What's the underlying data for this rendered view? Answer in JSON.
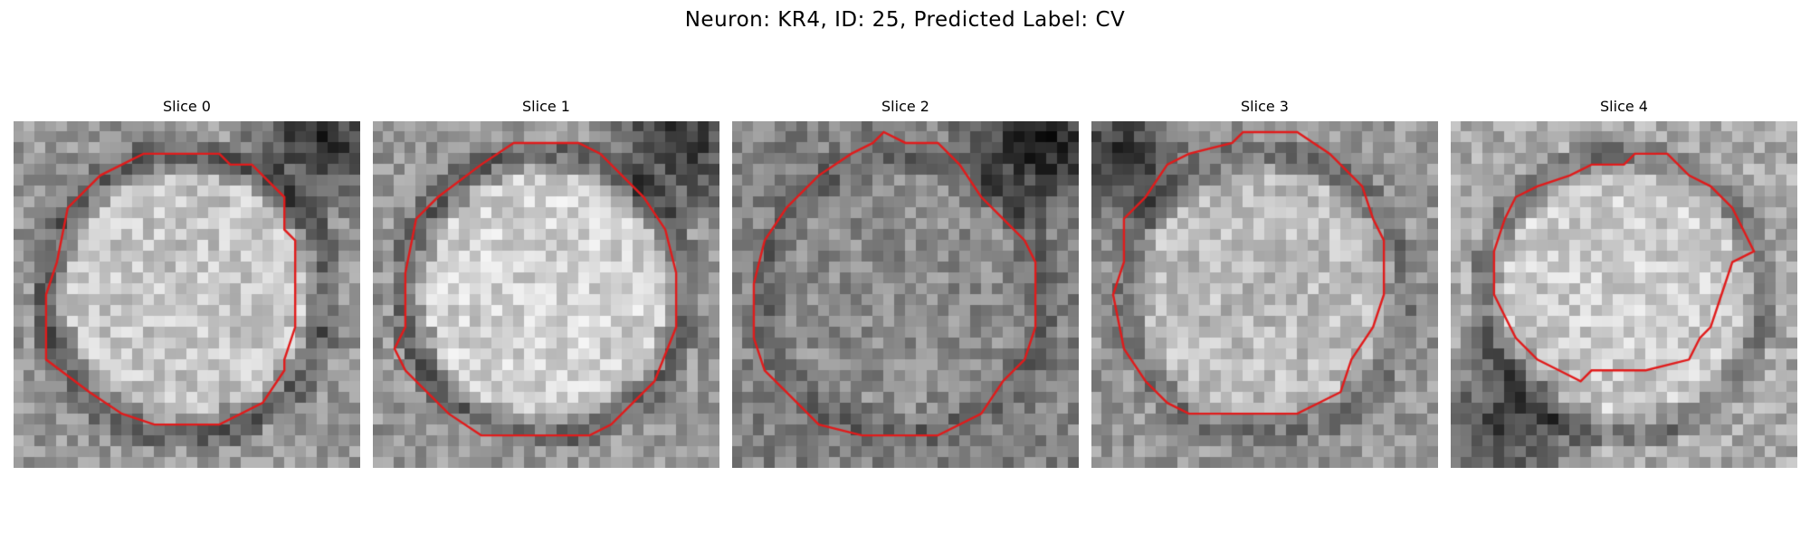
{
  "figure": {
    "title": "Neuron: KR4, ID: 25, Predicted Label: CV"
  },
  "colors": {
    "contour": "#e11b1b",
    "background": "#ffffff"
  },
  "panels": [
    {
      "title": "Slice 0",
      "center_intensity": 198,
      "ring_intensity": 88,
      "outside_intensity": 150,
      "dark_corner": "top-right",
      "contour": [
        [
          12,
          3
        ],
        [
          19,
          3
        ],
        [
          20,
          4
        ],
        [
          22,
          4
        ],
        [
          25,
          7
        ],
        [
          25,
          10
        ],
        [
          26,
          11
        ],
        [
          26,
          13
        ],
        [
          26,
          19
        ],
        [
          25,
          22
        ],
        [
          25,
          23
        ],
        [
          23,
          26
        ],
        [
          19,
          28
        ],
        [
          13,
          28
        ],
        [
          10,
          27
        ],
        [
          7,
          25
        ],
        [
          3,
          22
        ],
        [
          3,
          16
        ],
        [
          4,
          13
        ],
        [
          5,
          8
        ],
        [
          8,
          5
        ],
        [
          10,
          4
        ],
        [
          12,
          3
        ]
      ]
    },
    {
      "title": "Slice 1",
      "center_intensity": 210,
      "ring_intensity": 92,
      "outside_intensity": 150,
      "dark_corner": "top-right",
      "contour": [
        [
          13,
          2
        ],
        [
          19,
          2
        ],
        [
          21,
          3
        ],
        [
          25,
          7
        ],
        [
          27,
          10
        ],
        [
          28,
          14
        ],
        [
          28,
          19
        ],
        [
          26,
          24
        ],
        [
          24,
          26
        ],
        [
          22,
          28
        ],
        [
          20,
          29
        ],
        [
          10,
          29
        ],
        [
          7,
          27
        ],
        [
          3,
          23
        ],
        [
          2,
          21
        ],
        [
          3,
          19
        ],
        [
          3,
          14
        ],
        [
          4,
          9
        ],
        [
          6,
          7
        ],
        [
          10,
          4
        ],
        [
          13,
          2
        ]
      ]
    },
    {
      "title": "Slice 2",
      "center_intensity": 140,
      "ring_intensity": 95,
      "outside_intensity": 130,
      "dark_corner": "top-right",
      "contour": [
        [
          13,
          2
        ],
        [
          14,
          1
        ],
        [
          16,
          2
        ],
        [
          19,
          2
        ],
        [
          21,
          4
        ],
        [
          23,
          7
        ],
        [
          25,
          9
        ],
        [
          27,
          11
        ],
        [
          28,
          13
        ],
        [
          28,
          19
        ],
        [
          27,
          22
        ],
        [
          25,
          24
        ],
        [
          23,
          27
        ],
        [
          19,
          29
        ],
        [
          12,
          29
        ],
        [
          8,
          28
        ],
        [
          5,
          25
        ],
        [
          3,
          23
        ],
        [
          2,
          20
        ],
        [
          2,
          15
        ],
        [
          3,
          11
        ],
        [
          5,
          8
        ],
        [
          8,
          5
        ],
        [
          11,
          3
        ],
        [
          13,
          2
        ]
      ]
    },
    {
      "title": "Slice 3",
      "center_intensity": 188,
      "ring_intensity": 108,
      "outside_intensity": 150,
      "dark_corner": "top-left",
      "contour": [
        [
          14,
          1
        ],
        [
          19,
          1
        ],
        [
          22,
          3
        ],
        [
          24,
          5
        ],
        [
          25,
          6
        ],
        [
          26,
          9
        ],
        [
          27,
          11
        ],
        [
          27,
          16
        ],
        [
          26,
          19
        ],
        [
          24,
          22
        ],
        [
          23,
          25
        ],
        [
          19,
          27
        ],
        [
          9,
          27
        ],
        [
          7,
          26
        ],
        [
          5,
          24
        ],
        [
          3,
          21
        ],
        [
          2,
          16
        ],
        [
          3,
          13
        ],
        [
          3,
          9
        ],
        [
          5,
          7
        ],
        [
          7,
          4
        ],
        [
          9,
          3
        ],
        [
          13,
          2
        ],
        [
          14,
          1
        ]
      ]
    },
    {
      "title": "Slice 4",
      "center_intensity": 205,
      "ring_intensity": 110,
      "outside_intensity": 170,
      "dark_corner": "bottom-left",
      "contour": [
        [
          13,
          4
        ],
        [
          16,
          4
        ],
        [
          17,
          3
        ],
        [
          20,
          3
        ],
        [
          22,
          5
        ],
        [
          24,
          6
        ],
        [
          26,
          8
        ],
        [
          27,
          10
        ],
        [
          28,
          12
        ],
        [
          26,
          13
        ],
        [
          25,
          16
        ],
        [
          24,
          19
        ],
        [
          23,
          20
        ],
        [
          22,
          22
        ],
        [
          18,
          23
        ],
        [
          13,
          23
        ],
        [
          12,
          24
        ],
        [
          10,
          23
        ],
        [
          8,
          22
        ],
        [
          6,
          20
        ],
        [
          5,
          18
        ],
        [
          4,
          16
        ],
        [
          4,
          12
        ],
        [
          5,
          9
        ],
        [
          6,
          7
        ],
        [
          8,
          6
        ],
        [
          11,
          5
        ],
        [
          13,
          4
        ]
      ]
    }
  ]
}
